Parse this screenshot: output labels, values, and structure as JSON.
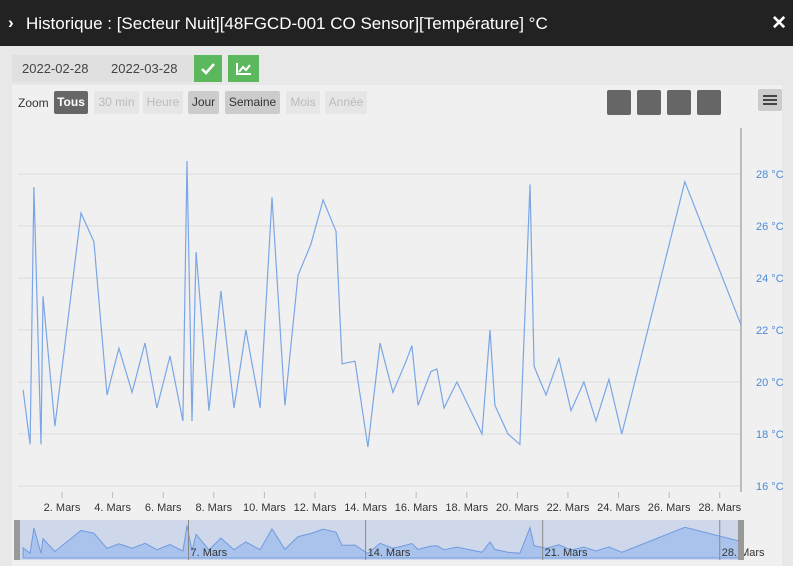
{
  "header": {
    "title": "Historique : [Secteur Nuit][48FGCD-001 CO Sensor][Température] °C"
  },
  "toolbar": {
    "start_date": "2022-02-28",
    "end_date": "2022-03-28",
    "zoom_label": "Zoom",
    "zoom_buttons": [
      {
        "label": "Tous",
        "state": "active"
      },
      {
        "label": "30 min",
        "state": "disabled"
      },
      {
        "label": "Heure",
        "state": "disabled"
      },
      {
        "label": "Jour",
        "state": "enabled"
      },
      {
        "label": "Semaine",
        "state": "enabled"
      },
      {
        "label": "Mois",
        "state": "disabled"
      },
      {
        "label": "Année",
        "state": "disabled"
      }
    ]
  },
  "chart_data": {
    "type": "line",
    "color": "#7aa6e6",
    "grid": true,
    "x": [
      0.46,
      0.74,
      0.89,
      1.17,
      1.25,
      1.72,
      2.75,
      3.26,
      3.78,
      4.25,
      4.77,
      5.28,
      5.75,
      6.27,
      6.78,
      6.94,
      7.14,
      7.3,
      7.81,
      8.28,
      8.8,
      9.27,
      9.83,
      10.3,
      10.81,
      11.33,
      11.84,
      12.32,
      12.83,
      13.07,
      13.58,
      14.09,
      14.57,
      15.08,
      15.6,
      15.83,
      16.07,
      16.58,
      16.82,
      17.1,
      17.61,
      18.6,
      18.92,
      19.11,
      19.63,
      20.1,
      20.5,
      20.66,
      21.13,
      21.64,
      22.12,
      22.63,
      23.11,
      23.62,
      24.13,
      26.62,
      28.84
    ],
    "values": [
      19.7,
      17.6,
      27.5,
      17.6,
      23.3,
      18.3,
      26.5,
      25.4,
      19.5,
      21.3,
      19.6,
      21.5,
      19.0,
      21.0,
      18.5,
      28.5,
      18.5,
      25.0,
      18.9,
      23.5,
      19.0,
      22.0,
      19.0,
      27.1,
      19.1,
      24.1,
      25.3,
      27.0,
      25.8,
      20.7,
      20.8,
      17.5,
      21.5,
      19.6,
      20.8,
      21.4,
      19.1,
      20.4,
      20.5,
      19.0,
      20.0,
      18.0,
      22.0,
      19.1,
      18.0,
      17.6,
      27.6,
      20.6,
      19.5,
      20.9,
      18.9,
      20.0,
      18.5,
      20.1,
      18.0,
      27.7,
      22.2
    ],
    "xlim": [
      0.26,
      28.84
    ],
    "ylim": [
      15.77,
      29.77
    ],
    "xticks": [
      {
        "value": 2,
        "label": "2. Mars"
      },
      {
        "value": 4,
        "label": "4. Mars"
      },
      {
        "value": 6,
        "label": "6. Mars"
      },
      {
        "value": 8,
        "label": "8. Mars"
      },
      {
        "value": 10,
        "label": "10. Mars"
      },
      {
        "value": 12,
        "label": "12. Mars"
      },
      {
        "value": 14,
        "label": "14. Mars"
      },
      {
        "value": 16,
        "label": "16. Mars"
      },
      {
        "value": 18,
        "label": "18. Mars"
      },
      {
        "value": 20,
        "label": "20. Mars"
      },
      {
        "value": 22,
        "label": "22. Mars"
      },
      {
        "value": 24,
        "label": "24. Mars"
      },
      {
        "value": 26,
        "label": "26. Mars"
      },
      {
        "value": 28,
        "label": "28. Mars"
      }
    ],
    "yticks": [
      {
        "value": 16,
        "label": "16 °C"
      },
      {
        "value": 18,
        "label": "18 °C"
      },
      {
        "value": 20,
        "label": "20 °C"
      },
      {
        "value": 22,
        "label": "22 °C"
      },
      {
        "value": 24,
        "label": "24 °C"
      },
      {
        "value": 26,
        "label": "26 °C"
      },
      {
        "value": 28,
        "label": "28 °C"
      }
    ],
    "navigator_xticks": [
      {
        "value": 7,
        "label": "7. Mars"
      },
      {
        "value": 14,
        "label": "14. Mars"
      },
      {
        "value": 21,
        "label": "21. Mars"
      },
      {
        "value": 28,
        "label": "28. Mars"
      }
    ]
  }
}
